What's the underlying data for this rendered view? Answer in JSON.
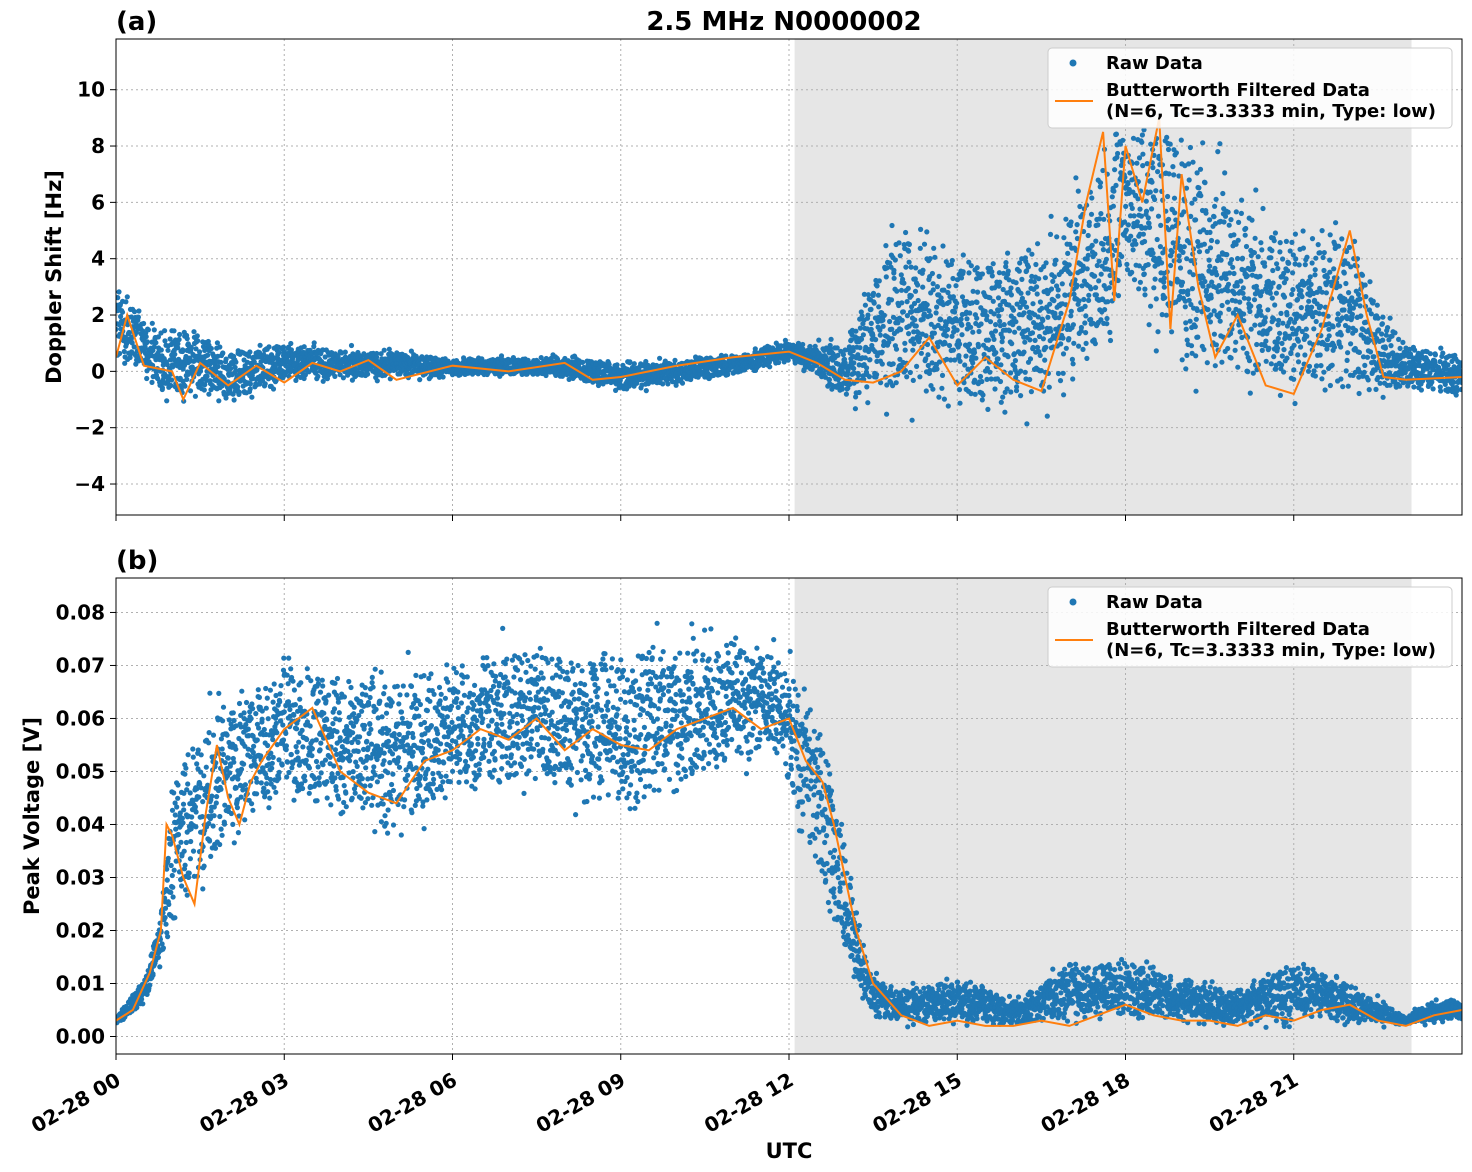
{
  "figure": {
    "title": "2.5 MHz N0000002",
    "xlabel": "UTC"
  },
  "colors": {
    "raw": "#1f77b4",
    "filtered": "#ff7f0e",
    "shade": "#e6e6e6",
    "grid": "#b0b0b0"
  },
  "chart_data": [
    {
      "panel_label": "(a)",
      "type": "scatter+line",
      "ylabel": "Doppler Shift [Hz]",
      "xlim_hours": [
        0,
        24
      ],
      "ylim": [
        -5.1,
        11.8
      ],
      "yticks": [
        -4,
        -2,
        0,
        2,
        4,
        6,
        8,
        10
      ],
      "ytick_labels": [
        "−4",
        "−2",
        "0",
        "2",
        "4",
        "6",
        "8",
        "10"
      ],
      "shaded_x_hours": [
        12.1,
        23.1
      ],
      "grid": true,
      "legend": {
        "position": "top-right",
        "entries": [
          "Raw Data",
          "Butterworth Filtered Data",
          "(N=6, Tc=3.3333 min, Type: low)"
        ]
      },
      "raw_envelope": {
        "x_hours": [
          0,
          0.5,
          1,
          1.5,
          2,
          3,
          4,
          5,
          6,
          7,
          8,
          9,
          10,
          11,
          12,
          12.5,
          13,
          13.5,
          14,
          15,
          16,
          16.5,
          17,
          17.5,
          18,
          19,
          20,
          21,
          22,
          22.5,
          23,
          24
        ],
        "y_low": [
          -0.3,
          -0.9,
          -1.5,
          -1.3,
          -1.6,
          -0.6,
          -0.5,
          -0.4,
          -0.3,
          -0.3,
          -0.4,
          -0.9,
          -0.6,
          -0.3,
          0.2,
          -0.4,
          -1.5,
          -1.8,
          -2.3,
          -2.5,
          -2.3,
          -2.4,
          -2.1,
          -1.4,
          2.0,
          -2.0,
          -2.0,
          -2.0,
          -2.0,
          -1.5,
          -1.0,
          -1.2
        ],
        "y_high": [
          4.2,
          2.3,
          2.2,
          1.8,
          1.2,
          1.3,
          1.0,
          0.9,
          0.6,
          0.6,
          0.7,
          0.5,
          0.6,
          0.8,
          1.2,
          1.2,
          1.5,
          4.8,
          6.5,
          5.5,
          5.5,
          6.0,
          7.5,
          9.0,
          10.4,
          10.4,
          8.0,
          6.0,
          6.5,
          3.0,
          1.4,
          0.8
        ]
      },
      "filtered": {
        "x_hours": [
          0,
          0.2,
          0.5,
          1,
          1.2,
          1.5,
          2,
          2.5,
          3,
          3.5,
          4,
          4.5,
          5,
          6,
          7,
          8,
          8.5,
          9,
          9.5,
          10,
          11,
          12,
          12.5,
          13,
          13.5,
          14,
          14.5,
          15,
          15.5,
          16,
          16.5,
          17,
          17.3,
          17.6,
          17.8,
          18,
          18.3,
          18.6,
          18.8,
          19,
          19.3,
          19.6,
          20,
          20.5,
          21,
          21.5,
          22,
          22.3,
          22.6,
          23,
          24
        ],
        "y": [
          0.5,
          2.0,
          0.2,
          0.0,
          -1.0,
          0.3,
          -0.5,
          0.2,
          -0.4,
          0.3,
          0.0,
          0.4,
          -0.3,
          0.2,
          0.0,
          0.3,
          -0.3,
          -0.2,
          0.0,
          0.2,
          0.5,
          0.7,
          0.3,
          -0.3,
          -0.4,
          0.0,
          1.2,
          -0.5,
          0.5,
          -0.3,
          -0.7,
          2.5,
          6.0,
          8.5,
          2.5,
          8.0,
          6.0,
          9.0,
          1.5,
          7.0,
          3.0,
          0.5,
          2.0,
          -0.5,
          -0.8,
          1.5,
          5.0,
          2.0,
          -0.2,
          -0.3,
          -0.2
        ]
      }
    },
    {
      "panel_label": "(b)",
      "type": "scatter+line",
      "ylabel": "Peak Voltage [V]",
      "xlim_hours": [
        0,
        24
      ],
      "ylim": [
        -0.0033,
        0.0865
      ],
      "yticks": [
        0.0,
        0.01,
        0.02,
        0.03,
        0.04,
        0.05,
        0.06,
        0.07,
        0.08
      ],
      "ytick_labels": [
        "0.00",
        "0.01",
        "0.02",
        "0.03",
        "0.04",
        "0.05",
        "0.06",
        "0.07",
        "0.08"
      ],
      "shaded_x_hours": [
        12.1,
        23.1
      ],
      "grid": true,
      "legend": {
        "position": "top-right",
        "entries": [
          "Raw Data",
          "Butterworth Filtered Data",
          "(N=6, Tc=3.3333 min, Type: low)"
        ]
      },
      "raw_envelope": {
        "x_hours": [
          0,
          0.5,
          0.8,
          1,
          1.5,
          2,
          2.5,
          3,
          4,
          5,
          6,
          7,
          8,
          9,
          10,
          11,
          11.8,
          12.2,
          12.6,
          13,
          13.3,
          13.6,
          14,
          15,
          16,
          17,
          18,
          19,
          20,
          21,
          22,
          23,
          23.5,
          24
        ],
        "y_low": [
          0.002,
          0.005,
          0.012,
          0.015,
          0.02,
          0.03,
          0.036,
          0.04,
          0.036,
          0.033,
          0.04,
          0.04,
          0.04,
          0.036,
          0.04,
          0.045,
          0.048,
          0.035,
          0.02,
          0.008,
          0.004,
          0.002,
          0.001,
          0.001,
          0.001,
          0.001,
          0.001,
          0.001,
          0.001,
          0.001,
          0.001,
          0.002,
          0.002,
          0.002
        ],
        "y_high": [
          0.004,
          0.012,
          0.025,
          0.055,
          0.068,
          0.07,
          0.072,
          0.076,
          0.075,
          0.074,
          0.077,
          0.08,
          0.079,
          0.079,
          0.08,
          0.082,
          0.079,
          0.072,
          0.065,
          0.04,
          0.02,
          0.012,
          0.01,
          0.013,
          0.008,
          0.016,
          0.017,
          0.013,
          0.01,
          0.017,
          0.012,
          0.004,
          0.008,
          0.008
        ]
      },
      "filtered": {
        "x_hours": [
          0,
          0.3,
          0.6,
          0.8,
          0.9,
          1.0,
          1.2,
          1.4,
          1.6,
          1.8,
          2.0,
          2.2,
          2.4,
          2.6,
          3.0,
          3.5,
          4.0,
          4.5,
          5.0,
          5.5,
          6.0,
          6.5,
          7.0,
          7.5,
          8.0,
          8.5,
          9.0,
          9.5,
          10.0,
          10.5,
          11.0,
          11.5,
          12.0,
          12.3,
          12.6,
          12.8,
          13.0,
          13.2,
          13.5,
          14.0,
          14.5,
          15.0,
          15.5,
          16.0,
          16.5,
          17.0,
          17.5,
          18.0,
          18.5,
          19.0,
          19.5,
          20.0,
          20.5,
          21.0,
          21.5,
          22.0,
          22.5,
          23.0,
          23.5,
          24.0
        ],
        "y": [
          0.003,
          0.005,
          0.012,
          0.02,
          0.04,
          0.038,
          0.03,
          0.025,
          0.042,
          0.055,
          0.045,
          0.04,
          0.048,
          0.052,
          0.058,
          0.062,
          0.05,
          0.046,
          0.044,
          0.052,
          0.054,
          0.058,
          0.056,
          0.06,
          0.054,
          0.058,
          0.055,
          0.054,
          0.058,
          0.06,
          0.062,
          0.058,
          0.06,
          0.052,
          0.048,
          0.04,
          0.03,
          0.02,
          0.01,
          0.004,
          0.002,
          0.003,
          0.002,
          0.002,
          0.003,
          0.002,
          0.004,
          0.006,
          0.004,
          0.003,
          0.003,
          0.002,
          0.004,
          0.003,
          0.005,
          0.006,
          0.003,
          0.002,
          0.004,
          0.005
        ]
      }
    }
  ],
  "x_axis": {
    "ticks_hours": [
      0,
      3,
      6,
      9,
      12,
      15,
      18,
      21
    ],
    "tick_labels": [
      "02-28 00",
      "02-28 03",
      "02-28 06",
      "02-28 09",
      "02-28 12",
      "02-28 15",
      "02-28 18",
      "02-28 21"
    ]
  }
}
